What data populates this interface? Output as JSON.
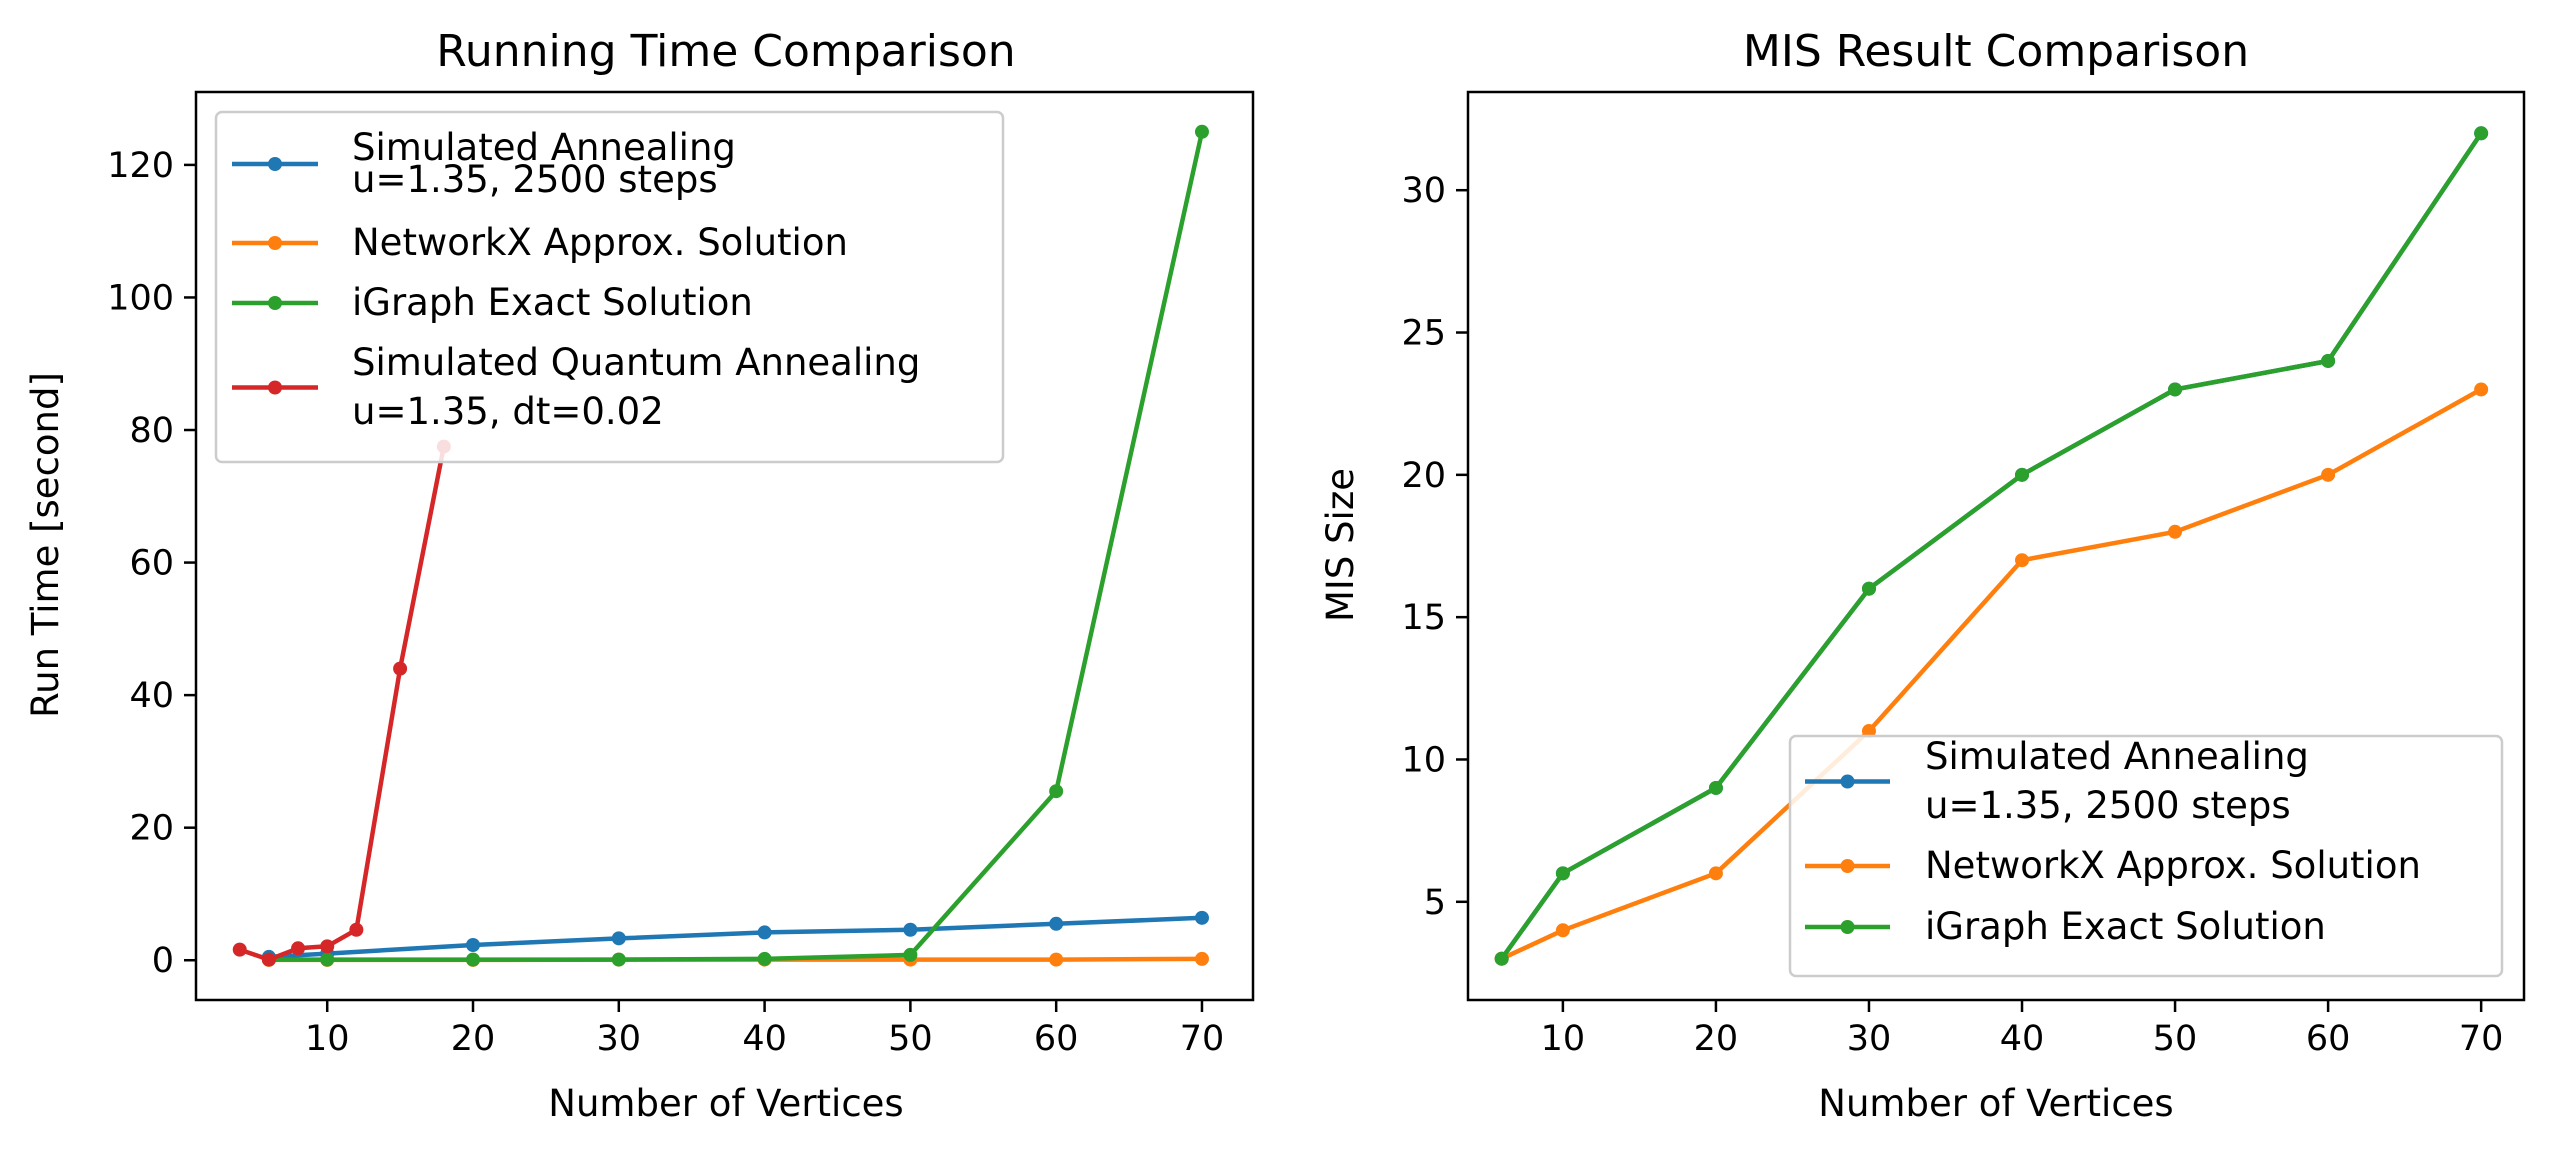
{
  "chart_data": [
    {
      "type": "line",
      "title": "Running Time Comparison",
      "xlabel": "Number of Vertices",
      "ylabel": "Run Time [second]",
      "xlim": [
        1,
        73.5
      ],
      "ylim": [
        -6,
        131
      ],
      "xticks": [
        10,
        20,
        30,
        40,
        50,
        60,
        70
      ],
      "yticks": [
        0,
        20,
        40,
        60,
        80,
        100,
        120
      ],
      "legend_position": "upper-left",
      "grid": false,
      "series": [
        {
          "name": "Simulated Annealing\nu=1.35, 2500 steps",
          "color": "#1f77b4",
          "x": [
            6,
            10,
            20,
            30,
            40,
            50,
            60,
            70
          ],
          "y": [
            0.5,
            1.0,
            2.3,
            3.3,
            4.2,
            4.6,
            5.5,
            6.4
          ]
        },
        {
          "name": "NetworkX Approx. Solution",
          "color": "#ff7f0e",
          "x": [
            6,
            10,
            20,
            30,
            40,
            50,
            60,
            70
          ],
          "y": [
            0.05,
            0.05,
            0.05,
            0.1,
            0.1,
            0.1,
            0.1,
            0.2
          ]
        },
        {
          "name": "iGraph Exact Solution",
          "color": "#2ca02c",
          "x": [
            6,
            10,
            20,
            30,
            40,
            50,
            60,
            70
          ],
          "y": [
            0.1,
            0.1,
            0.1,
            0.1,
            0.2,
            0.8,
            25.5,
            125
          ]
        },
        {
          "name": "Simulated Quantum Annealing\nu=1.35, dt=0.02",
          "color": "#d62728",
          "x": [
            4,
            6,
            8,
            10,
            12,
            15,
            18
          ],
          "y": [
            1.6,
            0.1,
            1.8,
            2.1,
            4.6,
            44,
            77.5
          ]
        }
      ]
    },
    {
      "type": "line",
      "title": "MIS Result Comparison",
      "xlabel": "Number of Vertices",
      "ylabel": "MIS Size",
      "xlim": [
        3.8,
        72.8
      ],
      "ylim": [
        1.55,
        33.45
      ],
      "xticks": [
        10,
        20,
        30,
        40,
        50,
        60,
        70
      ],
      "yticks": [
        5,
        10,
        15,
        20,
        25,
        30
      ],
      "legend_position": "lower-right",
      "grid": false,
      "series": [
        {
          "name": "Simulated Annealing\nu=1.35, 2500 steps",
          "color": "#1f77b4",
          "x": [
            6,
            10,
            20,
            30,
            40,
            50,
            60,
            70
          ],
          "y": [
            3,
            6,
            9,
            16,
            20,
            23,
            24,
            32
          ]
        },
        {
          "name": "NetworkX Approx. Solution",
          "color": "#ff7f0e",
          "x": [
            6,
            10,
            20,
            30,
            40,
            50,
            60,
            70
          ],
          "y": [
            3,
            4,
            6,
            11,
            17,
            18,
            20,
            23
          ]
        },
        {
          "name": "iGraph Exact Solution",
          "color": "#2ca02c",
          "x": [
            6,
            10,
            20,
            30,
            40,
            50,
            60,
            70
          ],
          "y": [
            3,
            6,
            9,
            16,
            20,
            23,
            24,
            32
          ]
        }
      ]
    }
  ]
}
